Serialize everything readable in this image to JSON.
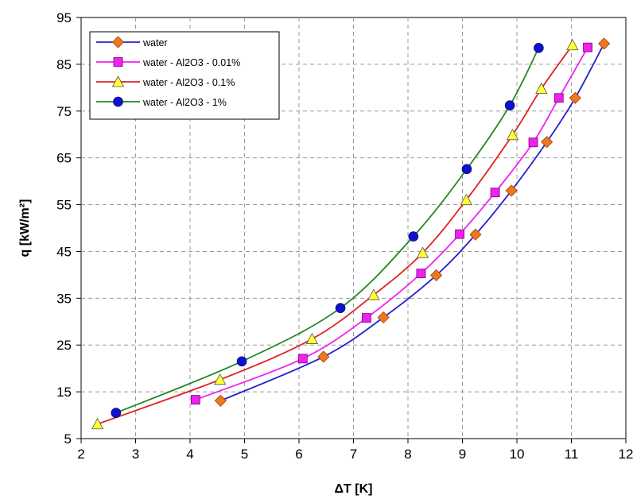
{
  "chart_data": {
    "type": "line",
    "xlabel": "ΔT [K]",
    "ylabel": "q [kW/m²]",
    "xlim": [
      2,
      12
    ],
    "ylim": [
      5,
      95
    ],
    "xticks": [
      2,
      3,
      4,
      5,
      6,
      7,
      8,
      9,
      10,
      11,
      12
    ],
    "yticks": [
      5,
      15,
      25,
      35,
      45,
      55,
      65,
      75,
      85,
      95
    ],
    "grid": true,
    "legend_position": "top-left",
    "series": [
      {
        "name": "water",
        "color": "#2222cc",
        "marker": "diamond",
        "marker_color": "#ee7722",
        "x": [
          4.56,
          6.45,
          7.55,
          8.52,
          9.24,
          9.9,
          10.55,
          11.07,
          11.6
        ],
        "y": [
          13.1,
          22.5,
          30.9,
          39.9,
          48.6,
          58.0,
          68.4,
          77.8,
          89.4
        ]
      },
      {
        "name": "water - Al2O3 - 0.01%",
        "color": "#ee22ee",
        "marker": "square",
        "marker_color": "#ee22ee",
        "x": [
          4.1,
          6.07,
          7.24,
          8.24,
          8.95,
          9.6,
          10.3,
          10.77,
          11.3
        ],
        "y": [
          13.3,
          22.1,
          30.8,
          40.3,
          48.7,
          57.6,
          68.3,
          77.8,
          88.6
        ]
      },
      {
        "name": "water - Al2O3 - 0.1%",
        "color": "#dd2222",
        "marker": "triangle",
        "marker_color": "#ffff33",
        "x": [
          2.3,
          4.55,
          6.24,
          7.37,
          8.27,
          9.07,
          9.92,
          10.45,
          11.02
        ],
        "y": [
          8.1,
          17.6,
          26.3,
          35.7,
          44.7,
          56.0,
          69.9,
          79.8,
          89.1
        ]
      },
      {
        "name": "water - Al2O3 - 1%",
        "color": "#228822",
        "marker": "circle",
        "marker_color": "#1111cc",
        "x": [
          2.64,
          4.95,
          6.76,
          8.1,
          9.08,
          9.87,
          10.4
        ],
        "y": [
          10.5,
          21.5,
          32.9,
          48.2,
          62.6,
          76.2,
          88.5
        ]
      }
    ]
  }
}
